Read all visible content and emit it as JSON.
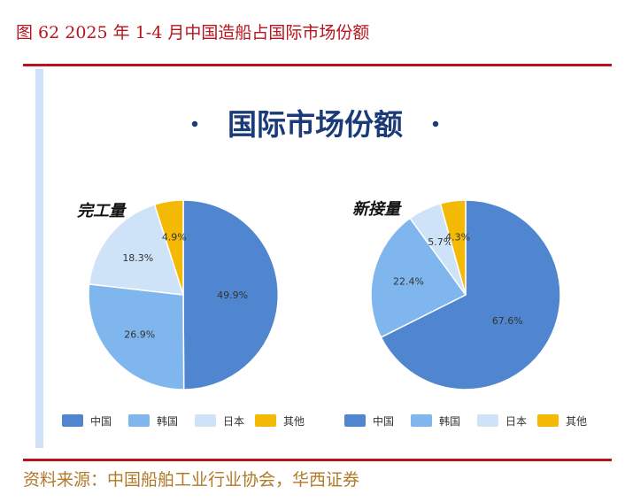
{
  "figure_title": "图 62 2025 年 1-4 月中国造船占国际市场份额",
  "source": "资料来源：中国船舶工业行业协会，华西证券",
  "colors": {
    "china": "#4f86cf",
    "korea": "#7fb6ee",
    "japan": "#cfe3f8",
    "other": "#f4b905"
  },
  "chart_data": [
    {
      "type": "pie",
      "heading": "国际市场份额",
      "title": "完工量",
      "labels": [
        "中国",
        "韩国",
        "日本",
        "其他"
      ],
      "values": [
        49.9,
        26.9,
        18.3,
        4.9
      ],
      "value_labels": [
        "49.9%",
        "26.9%",
        "18.3%",
        "4.9%"
      ],
      "legend": "bottom"
    },
    {
      "type": "pie",
      "heading": "国际市场份额",
      "title": "新接量",
      "labels": [
        "中国",
        "韩国",
        "日本",
        "其他"
      ],
      "values": [
        67.6,
        22.4,
        5.7,
        4.3
      ],
      "value_labels": [
        "67.6%",
        "22.4%",
        "5.7%",
        "4.3%"
      ],
      "legend": "bottom"
    }
  ]
}
